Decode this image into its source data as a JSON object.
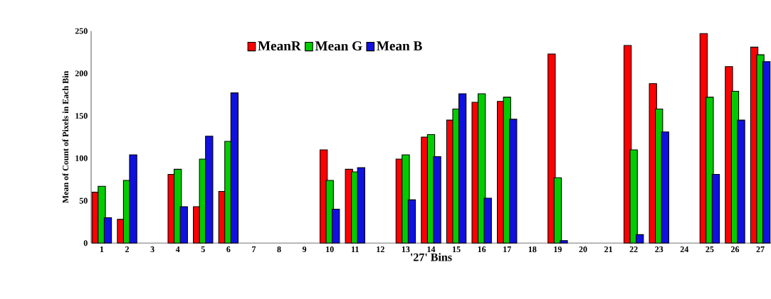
{
  "chart_data": {
    "type": "bar",
    "xlabel": "'27' Bins",
    "ylabel": "Mean of Count of Pixels in Each Bin",
    "categories": [
      "1",
      "2",
      "3",
      "4",
      "5",
      "6",
      "7",
      "8",
      "9",
      "10",
      "11",
      "12",
      "13",
      "14",
      "15",
      "16",
      "17",
      "18",
      "19",
      "20",
      "21",
      "22",
      "23",
      "24",
      "25",
      "26",
      "27"
    ],
    "series": [
      {
        "name": "MeanR",
        "color": "#ff0000",
        "values": [
          60,
          28,
          0,
          81,
          43,
          61,
          0,
          0,
          0,
          110,
          87,
          0,
          99,
          125,
          145,
          166,
          167,
          0,
          223,
          0,
          0,
          233,
          188,
          0,
          247,
          208,
          231
        ]
      },
      {
        "name": "Mean G",
        "color": "#00cc00",
        "values": [
          67,
          74,
          0,
          87,
          99,
          120,
          0,
          0,
          0,
          74,
          84,
          0,
          104,
          128,
          158,
          176,
          172,
          0,
          77,
          0,
          0,
          110,
          158,
          0,
          172,
          179,
          222
        ]
      },
      {
        "name": "Mean B",
        "color": "#1010e0",
        "values": [
          30,
          104,
          0,
          43,
          126,
          177,
          0,
          0,
          0,
          40,
          89,
          0,
          51,
          102,
          176,
          53,
          146,
          0,
          3,
          0,
          0,
          10,
          131,
          0,
          81,
          145,
          214
        ]
      }
    ],
    "ylim": [
      0,
      250
    ],
    "yticks": [
      0,
      50,
      100,
      150,
      200,
      250
    ],
    "grid": false,
    "legend": "top"
  }
}
